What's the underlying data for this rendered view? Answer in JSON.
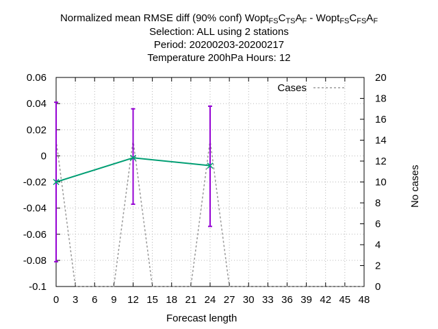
{
  "title": {
    "line1": {
      "prefix": "Normalized mean RMSE diff (90% conf) Wopt",
      "parts_a": [
        [
          "FS",
          "sub"
        ],
        [
          "C",
          "txt"
        ],
        [
          "TS",
          "sub"
        ],
        [
          "A",
          "txt"
        ],
        [
          "F",
          "sub"
        ]
      ],
      "separator": " - Wopt",
      "parts_b": [
        [
          "FS",
          "sub"
        ],
        [
          "C",
          "txt"
        ],
        [
          "FS",
          "sub"
        ],
        [
          "A",
          "txt"
        ],
        [
          "F",
          "sub"
        ]
      ]
    },
    "line2": "Selection: ALL using     2 stations",
    "line3": "Period: 20200203-20200217",
    "line4": "Temperature 200hPa   Hours:  12"
  },
  "chart_data": {
    "type": "line",
    "xlabel": "Forecast length",
    "ylabel_right": "No cases",
    "xlim": [
      0,
      48
    ],
    "ylim": [
      -0.1,
      0.06
    ],
    "y2lim": [
      0,
      20
    ],
    "xticks": [
      "0",
      "3",
      "6",
      "9",
      "12",
      "15",
      "18",
      "21",
      "24",
      "27",
      "30",
      "33",
      "36",
      "39",
      "42",
      "45",
      "48"
    ],
    "yticks": [
      "0.06",
      "0.04",
      "0.02",
      "0",
      "-0.02",
      "-0.04",
      "-0.06",
      "-0.08",
      "-0.1"
    ],
    "y2ticks": [
      "20",
      "18",
      "16",
      "14",
      "12",
      "10",
      "8",
      "6",
      "4",
      "2",
      "0"
    ],
    "grid": true,
    "legend_position": "top-right",
    "series": [
      {
        "kind": "main",
        "color": "#009e73",
        "x": [
          0,
          12,
          24
        ],
        "y": [
          -0.02,
          -0.0015,
          -0.0075
        ]
      },
      {
        "kind": "errorbar",
        "color": "#9400d3",
        "x": [
          0,
          12,
          24
        ],
        "low": [
          -0.081,
          -0.037,
          -0.054
        ],
        "high": [
          0.041,
          0.036,
          0.038
        ]
      },
      {
        "kind": "cases",
        "name": "Cases",
        "color": "#999999",
        "axis": "y2",
        "x": [
          0,
          3,
          9,
          12,
          15,
          21,
          24,
          27,
          48
        ],
        "y": [
          14,
          0,
          0,
          14,
          0,
          0,
          14,
          0,
          0
        ]
      }
    ]
  }
}
